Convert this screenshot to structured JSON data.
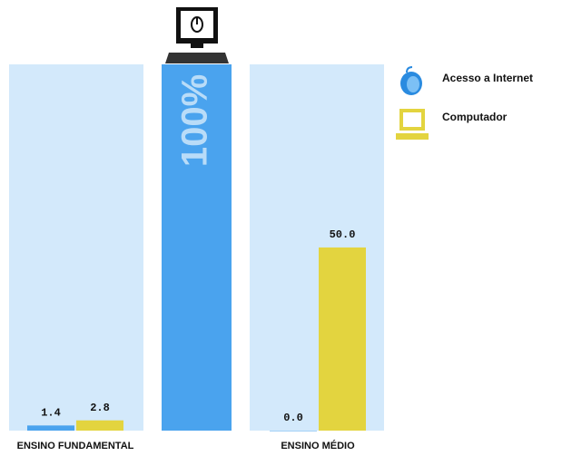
{
  "chart_data": {
    "type": "bar",
    "categories": [
      "ENSINO FUNDAMENTAL",
      "ENSINO MÉDIO"
    ],
    "series": [
      {
        "name": "Acesso a Internet",
        "color": "#4aa3ee",
        "values": [
          1.4,
          0.0
        ],
        "value_labels": [
          "1.4",
          "0.0"
        ]
      },
      {
        "name": "Computador",
        "color": "#e3d43f",
        "values": [
          2.8,
          50.0
        ],
        "value_labels": [
          "2.8",
          "50.0"
        ]
      }
    ],
    "reference": {
      "value": 100,
      "label": "100%",
      "color": "#4aa3ee"
    },
    "ylim": [
      0,
      100
    ],
    "panel_color": "#d3e9fb",
    "legend": "right"
  }
}
